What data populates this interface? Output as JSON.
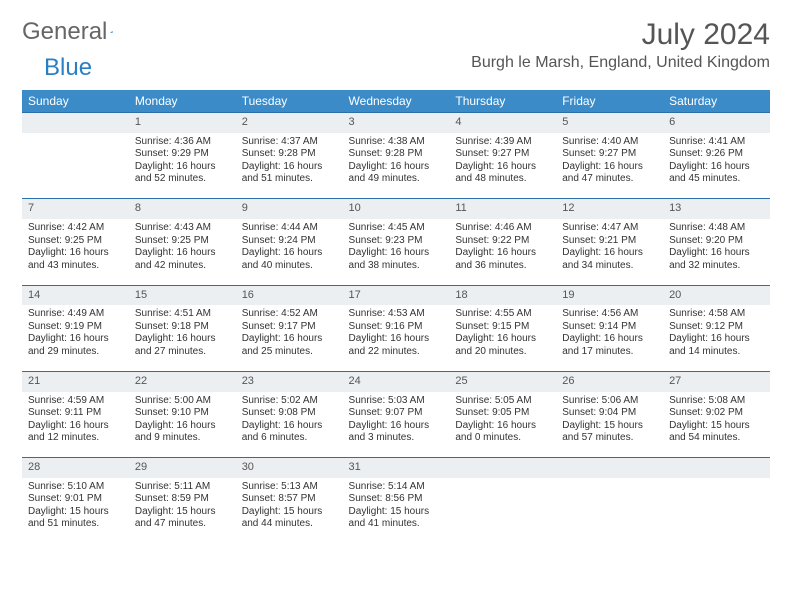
{
  "logo": {
    "text1": "General",
    "text2": "Blue"
  },
  "title": "July 2024",
  "location": "Burgh le Marsh, England, United Kingdom",
  "colors": {
    "header_bg": "#3b8bc9",
    "header_text": "#ffffff",
    "daynum_bg": "#eceff1",
    "border_top": "#2a6fa8",
    "logo_blue": "#2a7fc4"
  },
  "columns": [
    "Sunday",
    "Monday",
    "Tuesday",
    "Wednesday",
    "Thursday",
    "Friday",
    "Saturday"
  ],
  "weeks": [
    {
      "nums": [
        "",
        "1",
        "2",
        "3",
        "4",
        "5",
        "6"
      ],
      "cells": [
        {
          "lines": []
        },
        {
          "lines": [
            "Sunrise: 4:36 AM",
            "Sunset: 9:29 PM",
            "Daylight: 16 hours",
            "and 52 minutes."
          ]
        },
        {
          "lines": [
            "Sunrise: 4:37 AM",
            "Sunset: 9:28 PM",
            "Daylight: 16 hours",
            "and 51 minutes."
          ]
        },
        {
          "lines": [
            "Sunrise: 4:38 AM",
            "Sunset: 9:28 PM",
            "Daylight: 16 hours",
            "and 49 minutes."
          ]
        },
        {
          "lines": [
            "Sunrise: 4:39 AM",
            "Sunset: 9:27 PM",
            "Daylight: 16 hours",
            "and 48 minutes."
          ]
        },
        {
          "lines": [
            "Sunrise: 4:40 AM",
            "Sunset: 9:27 PM",
            "Daylight: 16 hours",
            "and 47 minutes."
          ]
        },
        {
          "lines": [
            "Sunrise: 4:41 AM",
            "Sunset: 9:26 PM",
            "Daylight: 16 hours",
            "and 45 minutes."
          ]
        }
      ]
    },
    {
      "nums": [
        "7",
        "8",
        "9",
        "10",
        "11",
        "12",
        "13"
      ],
      "cells": [
        {
          "lines": [
            "Sunrise: 4:42 AM",
            "Sunset: 9:25 PM",
            "Daylight: 16 hours",
            "and 43 minutes."
          ]
        },
        {
          "lines": [
            "Sunrise: 4:43 AM",
            "Sunset: 9:25 PM",
            "Daylight: 16 hours",
            "and 42 minutes."
          ]
        },
        {
          "lines": [
            "Sunrise: 4:44 AM",
            "Sunset: 9:24 PM",
            "Daylight: 16 hours",
            "and 40 minutes."
          ]
        },
        {
          "lines": [
            "Sunrise: 4:45 AM",
            "Sunset: 9:23 PM",
            "Daylight: 16 hours",
            "and 38 minutes."
          ]
        },
        {
          "lines": [
            "Sunrise: 4:46 AM",
            "Sunset: 9:22 PM",
            "Daylight: 16 hours",
            "and 36 minutes."
          ]
        },
        {
          "lines": [
            "Sunrise: 4:47 AM",
            "Sunset: 9:21 PM",
            "Daylight: 16 hours",
            "and 34 minutes."
          ]
        },
        {
          "lines": [
            "Sunrise: 4:48 AM",
            "Sunset: 9:20 PM",
            "Daylight: 16 hours",
            "and 32 minutes."
          ]
        }
      ]
    },
    {
      "nums": [
        "14",
        "15",
        "16",
        "17",
        "18",
        "19",
        "20"
      ],
      "cells": [
        {
          "lines": [
            "Sunrise: 4:49 AM",
            "Sunset: 9:19 PM",
            "Daylight: 16 hours",
            "and 29 minutes."
          ]
        },
        {
          "lines": [
            "Sunrise: 4:51 AM",
            "Sunset: 9:18 PM",
            "Daylight: 16 hours",
            "and 27 minutes."
          ]
        },
        {
          "lines": [
            "Sunrise: 4:52 AM",
            "Sunset: 9:17 PM",
            "Daylight: 16 hours",
            "and 25 minutes."
          ]
        },
        {
          "lines": [
            "Sunrise: 4:53 AM",
            "Sunset: 9:16 PM",
            "Daylight: 16 hours",
            "and 22 minutes."
          ]
        },
        {
          "lines": [
            "Sunrise: 4:55 AM",
            "Sunset: 9:15 PM",
            "Daylight: 16 hours",
            "and 20 minutes."
          ]
        },
        {
          "lines": [
            "Sunrise: 4:56 AM",
            "Sunset: 9:14 PM",
            "Daylight: 16 hours",
            "and 17 minutes."
          ]
        },
        {
          "lines": [
            "Sunrise: 4:58 AM",
            "Sunset: 9:12 PM",
            "Daylight: 16 hours",
            "and 14 minutes."
          ]
        }
      ]
    },
    {
      "nums": [
        "21",
        "22",
        "23",
        "24",
        "25",
        "26",
        "27"
      ],
      "cells": [
        {
          "lines": [
            "Sunrise: 4:59 AM",
            "Sunset: 9:11 PM",
            "Daylight: 16 hours",
            "and 12 minutes."
          ]
        },
        {
          "lines": [
            "Sunrise: 5:00 AM",
            "Sunset: 9:10 PM",
            "Daylight: 16 hours",
            "and 9 minutes."
          ]
        },
        {
          "lines": [
            "Sunrise: 5:02 AM",
            "Sunset: 9:08 PM",
            "Daylight: 16 hours",
            "and 6 minutes."
          ]
        },
        {
          "lines": [
            "Sunrise: 5:03 AM",
            "Sunset: 9:07 PM",
            "Daylight: 16 hours",
            "and 3 minutes."
          ]
        },
        {
          "lines": [
            "Sunrise: 5:05 AM",
            "Sunset: 9:05 PM",
            "Daylight: 16 hours",
            "and 0 minutes."
          ]
        },
        {
          "lines": [
            "Sunrise: 5:06 AM",
            "Sunset: 9:04 PM",
            "Daylight: 15 hours",
            "and 57 minutes."
          ]
        },
        {
          "lines": [
            "Sunrise: 5:08 AM",
            "Sunset: 9:02 PM",
            "Daylight: 15 hours",
            "and 54 minutes."
          ]
        }
      ]
    },
    {
      "nums": [
        "28",
        "29",
        "30",
        "31",
        "",
        "",
        ""
      ],
      "cells": [
        {
          "lines": [
            "Sunrise: 5:10 AM",
            "Sunset: 9:01 PM",
            "Daylight: 15 hours",
            "and 51 minutes."
          ]
        },
        {
          "lines": [
            "Sunrise: 5:11 AM",
            "Sunset: 8:59 PM",
            "Daylight: 15 hours",
            "and 47 minutes."
          ]
        },
        {
          "lines": [
            "Sunrise: 5:13 AM",
            "Sunset: 8:57 PM",
            "Daylight: 15 hours",
            "and 44 minutes."
          ]
        },
        {
          "lines": [
            "Sunrise: 5:14 AM",
            "Sunset: 8:56 PM",
            "Daylight: 15 hours",
            "and 41 minutes."
          ]
        },
        {
          "lines": []
        },
        {
          "lines": []
        },
        {
          "lines": []
        }
      ]
    }
  ]
}
